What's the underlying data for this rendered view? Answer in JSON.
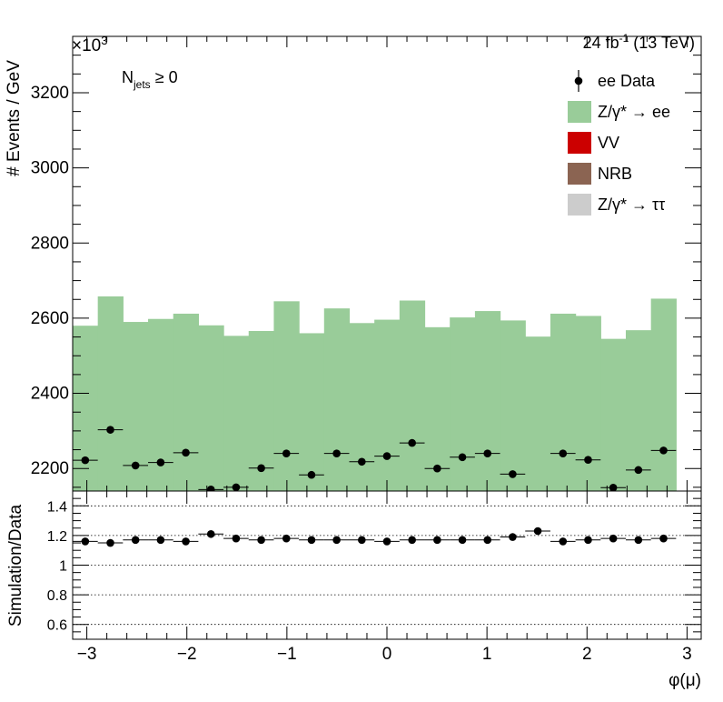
{
  "header": {
    "exponent_base": "×10",
    "exponent_power": "3",
    "lumi_prefix": "24 fb",
    "lumi_power": "-1",
    "lumi_suffix": " (13 TeV)"
  },
  "chart_data": [
    {
      "type": "bar",
      "ylabel": "# Events / GeV",
      "ylim": [
        2140,
        3350
      ],
      "y_scale_note": "×10^3",
      "y_ticks": [
        2200,
        2400,
        2600,
        2800,
        3000,
        3200
      ],
      "annotation": {
        "main": "N",
        "sub": "jets",
        "tail": " ≥ 0"
      },
      "bin_edges": [
        -3.1416,
        -2.8904,
        -2.6391,
        -2.3877,
        -2.1363,
        -1.885,
        -1.6336,
        -1.3823,
        -1.131,
        -0.8796,
        -0.6283,
        -0.3769,
        -0.1256,
        0.1257,
        0.3771,
        0.6284,
        0.8797,
        1.1311,
        1.3824,
        1.6338,
        1.8851,
        2.1365,
        2.3878,
        2.6392,
        2.8905,
        3.1416
      ],
      "legend": [
        {
          "label": "ee Data",
          "kind": "marker",
          "color": "#000000"
        },
        {
          "label": "Z/γ* → ee",
          "kind": "fill",
          "color": "#99cc99"
        },
        {
          "label": "VV",
          "kind": "fill",
          "color": "#cc0000"
        },
        {
          "label": "NRB",
          "kind": "fill",
          "color": "#8b6452"
        },
        {
          "label": "Z/γ* → ττ",
          "kind": "fill",
          "color": "#cccccc"
        }
      ],
      "legend_placement": "top-right",
      "series": [
        {
          "name": "Z/γ* → ee",
          "style": "filled-histogram",
          "color": "#99cc99",
          "values": [
            2580,
            2658,
            2590,
            2598,
            2612,
            2581,
            2553,
            2566,
            2645,
            2560,
            2626,
            2587,
            2596,
            2647,
            2576,
            2602,
            2619,
            2594,
            2551,
            2612,
            2606,
            2545,
            2568,
            2652
          ]
        },
        {
          "name": "ee Data",
          "style": "points",
          "color": "#000000",
          "values": [
            2222,
            2303,
            2208,
            2216,
            2242,
            2144,
            2150,
            2201,
            2240,
            2183,
            2240,
            2218,
            2233,
            2268,
            2200,
            2230,
            2240,
            2185,
            2130,
            2240,
            2223,
            2149,
            2196,
            2248
          ]
        }
      ]
    },
    {
      "type": "scatter",
      "xlabel": "φ(μ)",
      "ylabel": "Simulation/Data",
      "xlim": [
        -3.1416,
        3.1416
      ],
      "ylim": [
        0.5,
        1.5
      ],
      "x_ticks": [
        -3,
        -2,
        -1,
        0,
        1,
        2,
        3
      ],
      "y_ticks": [
        0.6,
        0.8,
        1,
        1.2,
        1.4
      ],
      "y_tick_labels": [
        "0.6",
        "0.8",
        "1",
        "1.2",
        "1.4"
      ],
      "grid": "dotted horizontal lines at y ticks",
      "series": [
        {
          "name": "",
          "values": [
            1.16,
            1.15,
            1.17,
            1.17,
            1.16,
            1.21,
            1.18,
            1.17,
            1.18,
            1.17,
            1.17,
            1.17,
            1.16,
            1.17,
            1.17,
            1.17,
            1.17,
            1.19,
            1.23,
            1.16,
            1.17,
            1.18,
            1.17,
            1.18
          ]
        }
      ]
    }
  ]
}
